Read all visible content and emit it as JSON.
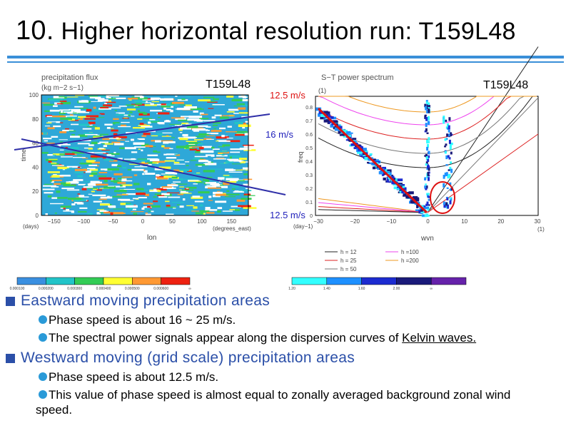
{
  "slide": {
    "title_num": "10.",
    "title_text": "Higher horizontal resolution run: T159L48"
  },
  "left_panel": {
    "title_line1": "precipitation flux",
    "title_line2": "(kg m−2 s−1)",
    "model_label": "T159L48",
    "ylabel": "time",
    "yunit": "(days)",
    "xlabel": "lon",
    "xunit": "(degrees_east)",
    "yticks": [
      "0",
      "20",
      "40",
      "60",
      "80",
      "100"
    ],
    "xticks": [
      "−150",
      "−100",
      "−50",
      "0",
      "50",
      "100",
      "150"
    ],
    "speed_top": "12.5 m/s",
    "speed_mid": "16 m/s",
    "speed_bottom": "12.5 m/s",
    "line_color": "#2f2fa8",
    "colorbar": {
      "colors": [
        "#3a8fe0",
        "#22c4c8",
        "#33cc55",
        "#ffff33",
        "#ff9933",
        "#ee2211"
      ],
      "labels": [
        "0.000100",
        "0.000200",
        "0.000300",
        "0.000400",
        "0.000500",
        "0.000600",
        "∞"
      ]
    }
  },
  "right_panel": {
    "title": "S−T power spectrum",
    "model_label": "T159L48",
    "ylabel": "freq",
    "yunit": "(1)",
    "xunit_left": "(day−1)",
    "xlabel": "wvn",
    "xunit_right": "(1)",
    "yticks": [
      "0",
      "0.1",
      "0.2",
      "0.3",
      "0.4",
      "0.5",
      "0.6",
      "0.7",
      "0.8"
    ],
    "xticks": [
      "−30",
      "−20",
      "−10",
      "0",
      "10",
      "20",
      "30"
    ],
    "legend": [
      {
        "label": "h = 12",
        "color": "#222222"
      },
      {
        "label": "h = 25",
        "color": "#dd2222"
      },
      {
        "label": "h = 50",
        "color": "#777777"
      },
      {
        "label": "h =100",
        "color": "#ee44ee"
      },
      {
        "label": "h =200",
        "color": "#ee9922"
      }
    ],
    "colorbar": {
      "colors": [
        "#33ffff",
        "#1e90ff",
        "#1c2bd0",
        "#1a1a7a",
        "#6622aa"
      ],
      "labels": [
        "1.20",
        "1.40",
        "1.60",
        "2.00",
        "∞"
      ]
    }
  },
  "bullets": {
    "eastward_heading": "Eastward moving precipitation areas",
    "eastward_item1": "Phase speed is about 16 ~ 25 m/s.",
    "eastward_item2_pre": "The spectral power signals appear along the dispersion curves of ",
    "eastward_item2_link": "Kelvin waves.",
    "westward_heading": "Westward moving (grid scale) precipitation areas",
    "westward_item1": "Phase speed is about 12.5 m/s.",
    "westward_item2": "This value of phase speed is almost equal to zonally averaged background zonal wind speed."
  }
}
